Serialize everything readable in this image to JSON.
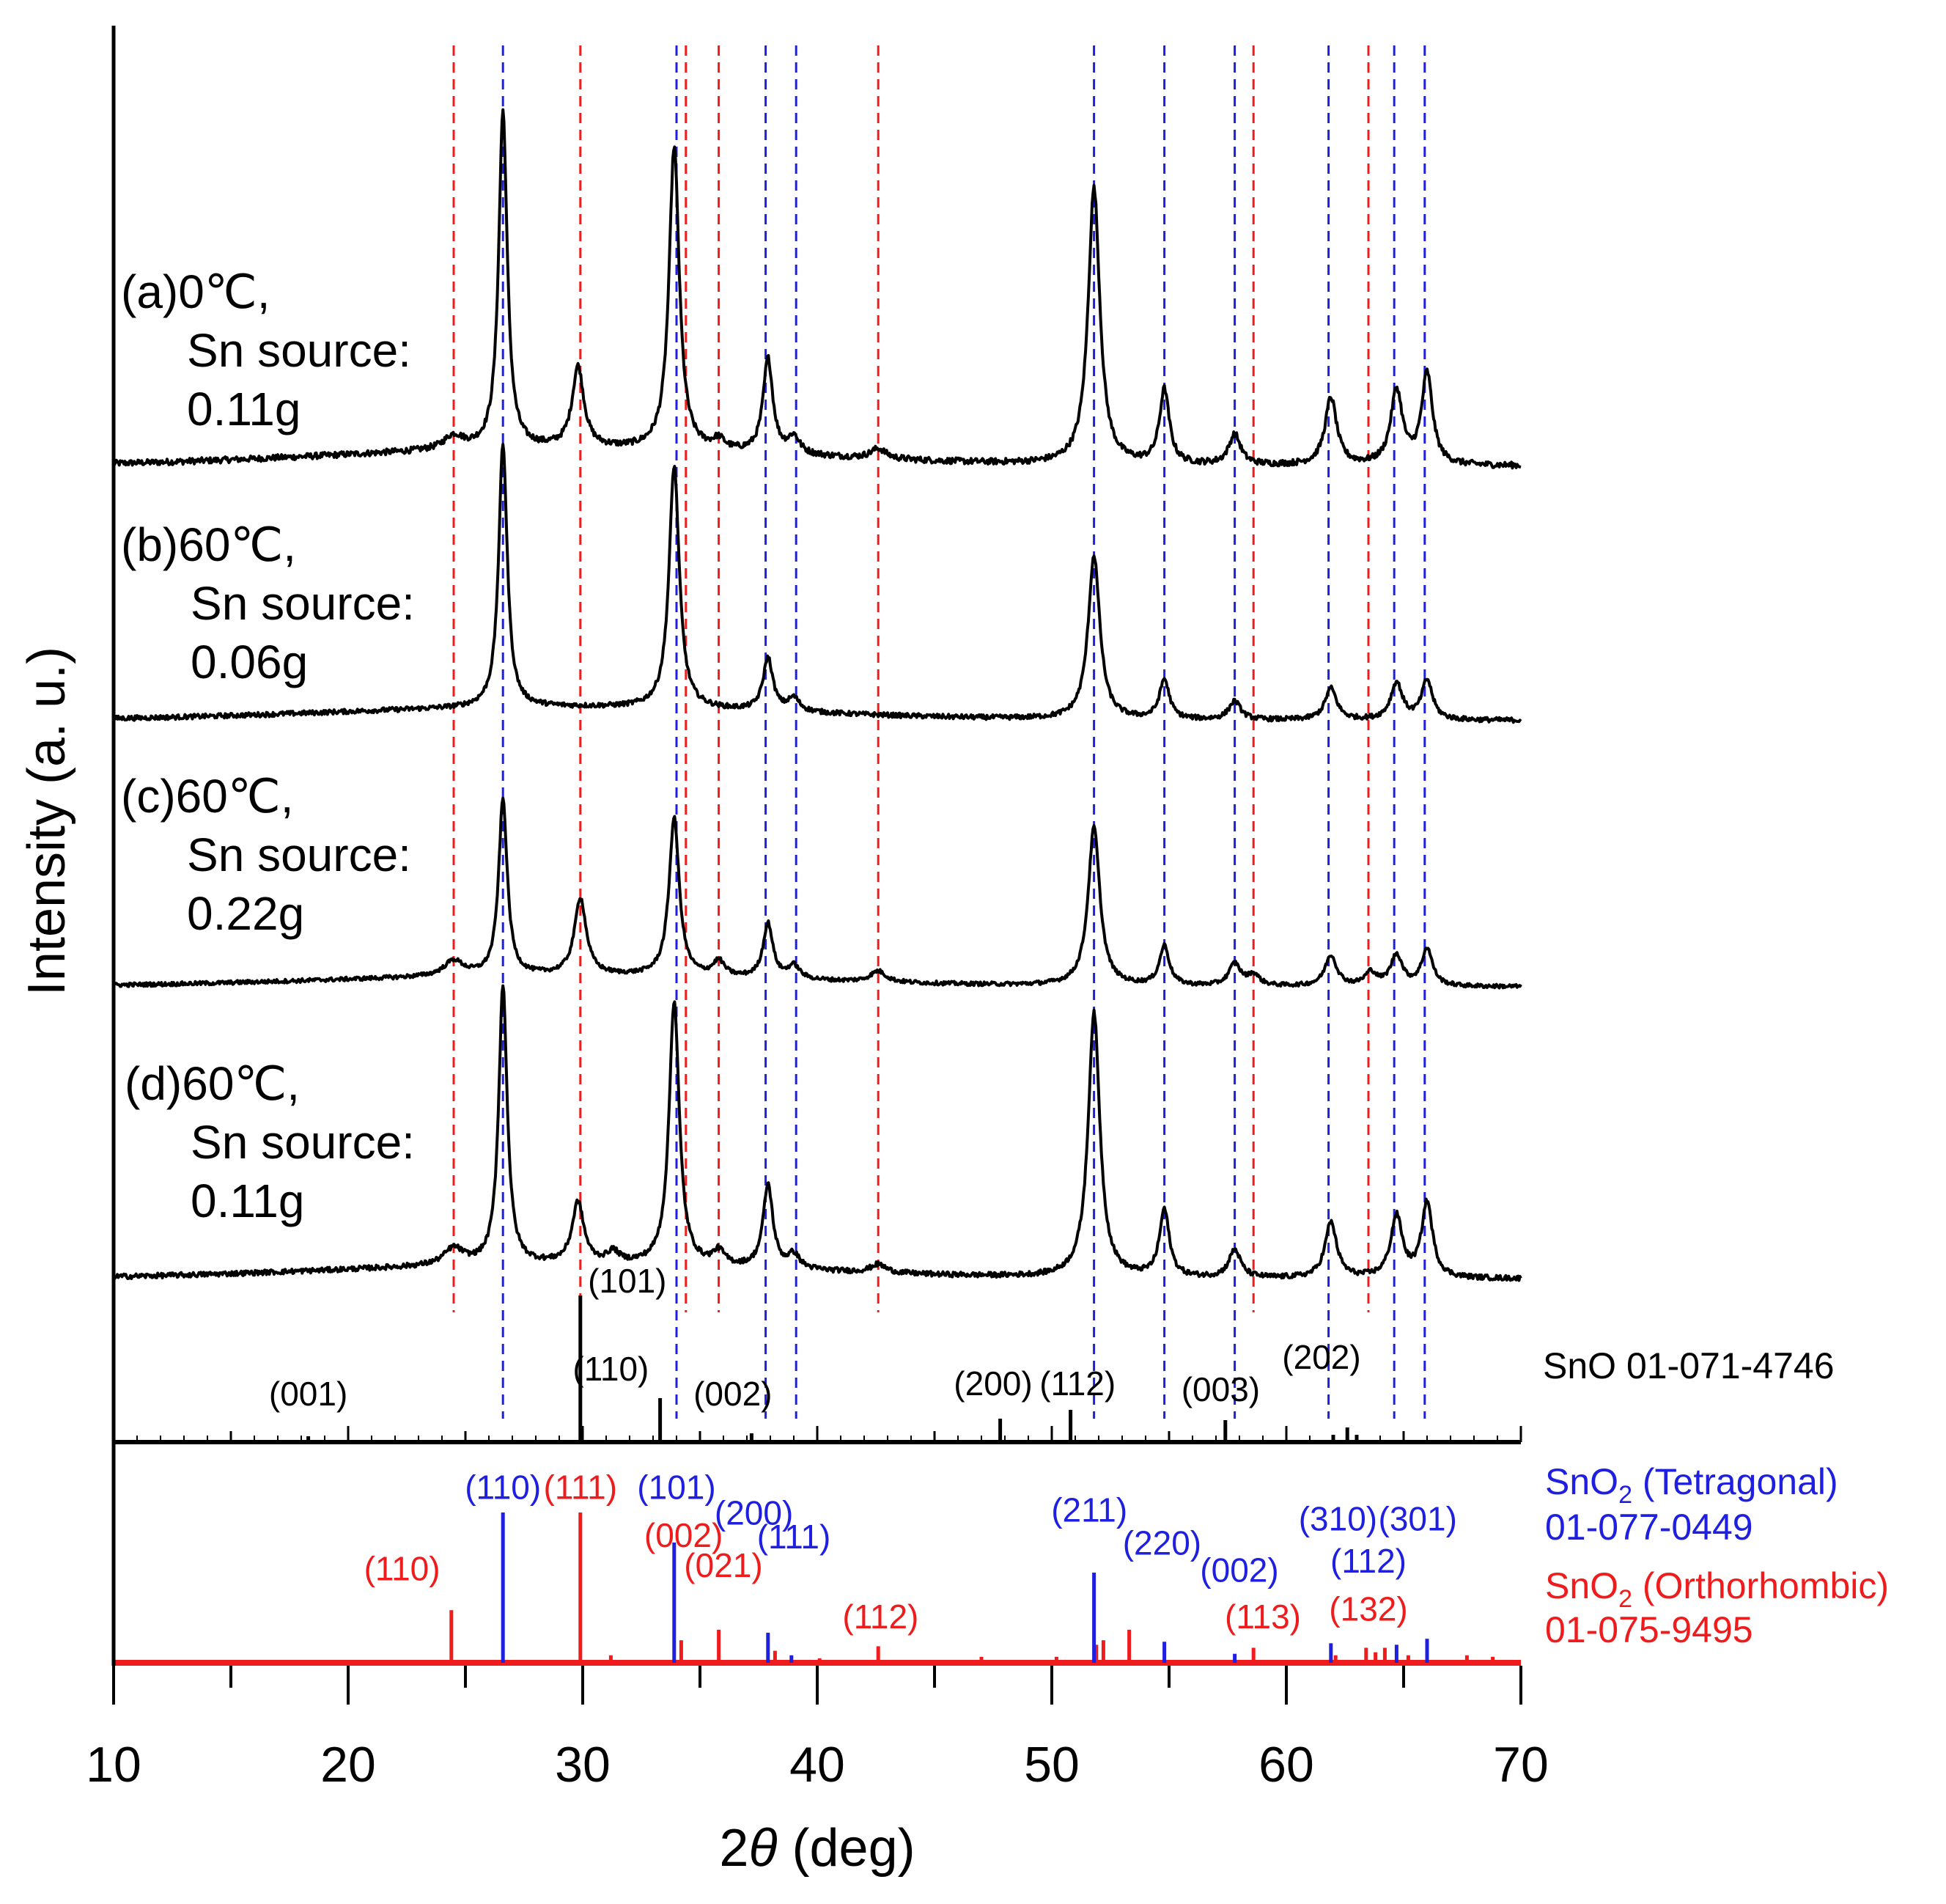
{
  "chart_data": {
    "type": "line",
    "title": "",
    "xlabel_prefix": "2",
    "xlabel_symbol": "θ",
    "xlabel_suffix": " (deg)",
    "ylabel": "Intensity (a. u.)",
    "xlim": [
      10,
      70
    ],
    "x_ticks": [
      10,
      20,
      30,
      40,
      50,
      60,
      70
    ],
    "x_minor_ticks": [
      15,
      25,
      35,
      45,
      55,
      65
    ],
    "colors": {
      "black": "#000000",
      "blue": "#1f1fe0",
      "red": "#ee1c1c"
    },
    "samples": [
      {
        "id": "a",
        "line1": "(a)0℃,",
        "line2": "Sn source:",
        "line3": "0.11g",
        "baseline": 0.05,
        "noise": 0.009,
        "peaks": [
          [
            24.5,
            0.04,
            0.5
          ],
          [
            26.6,
            1.0,
            0.22
          ],
          [
            29.8,
            0.24,
            0.3
          ],
          [
            33.9,
            0.9,
            0.26
          ],
          [
            35.8,
            0.03,
            0.3
          ],
          [
            37.9,
            0.28,
            0.25
          ],
          [
            39.0,
            0.05,
            0.3
          ],
          [
            42.6,
            0.03,
            0.4
          ],
          [
            51.8,
            0.82,
            0.3
          ],
          [
            54.8,
            0.22,
            0.25
          ],
          [
            57.8,
            0.09,
            0.3
          ],
          [
            61.9,
            0.2,
            0.3
          ],
          [
            64.7,
            0.22,
            0.3
          ],
          [
            66.0,
            0.27,
            0.28
          ]
        ]
      },
      {
        "id": "b",
        "line1": "(b)60℃,",
        "line2": "Sn source:",
        "line3": "0.06g",
        "baseline": 0.05,
        "noise": 0.009,
        "peaks": [
          [
            26.6,
            1.0,
            0.22
          ],
          [
            33.9,
            0.92,
            0.26
          ],
          [
            37.9,
            0.2,
            0.25
          ],
          [
            39.0,
            0.05,
            0.3
          ],
          [
            51.8,
            0.62,
            0.3
          ],
          [
            54.8,
            0.15,
            0.25
          ],
          [
            57.8,
            0.07,
            0.3
          ],
          [
            61.9,
            0.12,
            0.3
          ],
          [
            64.7,
            0.14,
            0.3
          ],
          [
            66.0,
            0.15,
            0.28
          ]
        ]
      },
      {
        "id": "c",
        "line1": "(c)60℃,",
        "line2": "Sn source:",
        "line3": "0.22g",
        "baseline": 0.05,
        "noise": 0.009,
        "peaks": [
          [
            24.5,
            0.07,
            0.5
          ],
          [
            26.6,
            0.8,
            0.22
          ],
          [
            29.9,
            0.35,
            0.3
          ],
          [
            33.9,
            0.72,
            0.26
          ],
          [
            35.8,
            0.07,
            0.3
          ],
          [
            37.9,
            0.25,
            0.25
          ],
          [
            39.0,
            0.06,
            0.3
          ],
          [
            42.6,
            0.05,
            0.4
          ],
          [
            51.8,
            0.72,
            0.3
          ],
          [
            54.8,
            0.18,
            0.25
          ],
          [
            57.8,
            0.1,
            0.3
          ],
          [
            58.6,
            0.05,
            0.3
          ],
          [
            61.9,
            0.14,
            0.3
          ],
          [
            63.6,
            0.06,
            0.3
          ],
          [
            64.7,
            0.14,
            0.3
          ],
          [
            66.0,
            0.17,
            0.28
          ]
        ]
      },
      {
        "id": "d",
        "line1": "(d)60℃,",
        "line2": "Sn source:",
        "line3": "0.11g",
        "baseline": 0.05,
        "noise": 0.009,
        "peaks": [
          [
            24.5,
            0.06,
            0.5
          ],
          [
            26.6,
            1.0,
            0.22
          ],
          [
            29.8,
            0.22,
            0.3
          ],
          [
            31.3,
            0.04,
            0.3
          ],
          [
            33.9,
            0.95,
            0.26
          ],
          [
            35.8,
            0.05,
            0.3
          ],
          [
            37.9,
            0.3,
            0.25
          ],
          [
            39.0,
            0.05,
            0.3
          ],
          [
            42.6,
            0.03,
            0.4
          ],
          [
            51.8,
            0.95,
            0.3
          ],
          [
            54.8,
            0.24,
            0.25
          ],
          [
            57.8,
            0.1,
            0.3
          ],
          [
            61.9,
            0.2,
            0.3
          ],
          [
            64.7,
            0.22,
            0.3
          ],
          [
            66.0,
            0.27,
            0.28
          ]
        ]
      }
    ],
    "blue_dashed_positions": [
      26.6,
      34.0,
      37.8,
      39.1,
      51.8,
      54.8,
      57.8,
      61.8,
      64.6,
      65.9
    ],
    "red_dashed_positions": [
      24.5,
      29.9,
      34.4,
      35.8,
      42.6,
      58.6,
      63.5
    ],
    "sno_reference": {
      "name": "SnO  01-071-4746",
      "sticks": [
        [
          18.3,
          0.04
        ],
        [
          29.9,
          1.0
        ],
        [
          33.3,
          0.3
        ],
        [
          37.2,
          0.06
        ],
        [
          47.8,
          0.16
        ],
        [
          50.8,
          0.22
        ],
        [
          57.4,
          0.15
        ],
        [
          62.0,
          0.05
        ],
        [
          62.6,
          0.1
        ],
        [
          63.0,
          0.05
        ]
      ],
      "labels": [
        {
          "text": "(001)",
          "x": 18.3,
          "level": 0.25
        },
        {
          "text": "(101)",
          "x": 31.9,
          "level": 1.02
        },
        {
          "text": "(110)",
          "x": 31.2,
          "level": 0.42
        },
        {
          "text": "(002)",
          "x": 36.4,
          "level": 0.25
        },
        {
          "text": "(200)",
          "x": 47.5,
          "level": 0.32
        },
        {
          "text": "(112)",
          "x": 51.1,
          "level": 0.32
        },
        {
          "text": "(003)",
          "x": 57.2,
          "level": 0.28
        },
        {
          "text": "(202)",
          "x": 61.5,
          "level": 0.5
        }
      ]
    },
    "sno2_tetragonal": {
      "name": "SnO",
      "name_sub": "2",
      "name_suffix": " (Tetragonal)",
      "card": "01-077-0449",
      "sticks": [
        [
          26.6,
          1.0
        ],
        [
          33.9,
          0.8
        ],
        [
          37.9,
          0.2
        ],
        [
          38.9,
          0.05
        ],
        [
          51.8,
          0.6
        ],
        [
          54.8,
          0.14
        ],
        [
          57.8,
          0.06
        ],
        [
          61.9,
          0.13
        ],
        [
          64.7,
          0.12
        ],
        [
          66.0,
          0.16
        ]
      ],
      "labels": [
        {
          "text": "(110)",
          "x": 26.6,
          "level": 1.09
        },
        {
          "text": "(101)",
          "x": 34.0,
          "level": 1.09
        },
        {
          "text": "(200)",
          "x": 37.3,
          "level": 0.92
        },
        {
          "text": "(111)",
          "x": 39.0,
          "level": 0.76
        },
        {
          "text": "(211)",
          "x": 51.6,
          "level": 0.94
        },
        {
          "text": "(220)",
          "x": 54.7,
          "level": 0.72
        },
        {
          "text": "(002)",
          "x": 58.0,
          "level": 0.54
        },
        {
          "text": "(310)",
          "x": 62.2,
          "level": 0.88
        },
        {
          "text": "(301)",
          "x": 65.6,
          "level": 0.88
        },
        {
          "text": "(112)",
          "x": 63.5,
          "level": 0.6
        }
      ]
    },
    "sno2_orthorhombic": {
      "name": "SnO",
      "name_sub": "2",
      "name_suffix": " (Orthorhombic)",
      "card": "01-075-9495",
      "sticks": [
        [
          24.4,
          0.35
        ],
        [
          29.9,
          1.0
        ],
        [
          31.2,
          0.05
        ],
        [
          34.2,
          0.15
        ],
        [
          35.8,
          0.22
        ],
        [
          38.2,
          0.08
        ],
        [
          40.1,
          0.03
        ],
        [
          42.6,
          0.11
        ],
        [
          47.0,
          0.04
        ],
        [
          50.2,
          0.04
        ],
        [
          51.9,
          0.12
        ],
        [
          52.2,
          0.15
        ],
        [
          53.3,
          0.22
        ],
        [
          58.6,
          0.1
        ],
        [
          62.1,
          0.05
        ],
        [
          63.4,
          0.1
        ],
        [
          63.8,
          0.07
        ],
        [
          64.2,
          0.1
        ],
        [
          65.2,
          0.05
        ],
        [
          67.7,
          0.05
        ],
        [
          68.8,
          0.04
        ]
      ],
      "labels": [
        {
          "text": "(110)",
          "x": 22.3,
          "level": 0.55
        },
        {
          "text": "(111)",
          "x": 29.9,
          "level": 1.09
        },
        {
          "text": "(002)",
          "x": 34.3,
          "level": 0.77
        },
        {
          "text": "(021)",
          "x": 36.0,
          "level": 0.57
        },
        {
          "text": "(112)",
          "x": 42.7,
          "level": 0.23
        },
        {
          "text": "(113)",
          "x": 59.0,
          "level": 0.23
        },
        {
          "text": "(132)",
          "x": 63.5,
          "level": 0.28
        }
      ]
    }
  }
}
